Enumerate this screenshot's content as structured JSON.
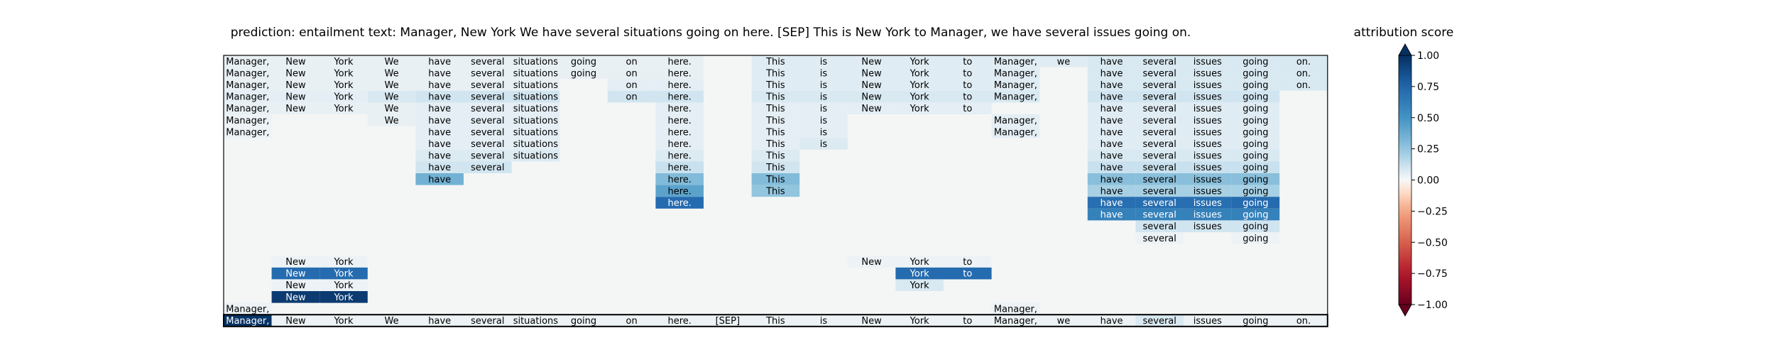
{
  "chart_data": {
    "type": "heatmap",
    "title": "prediction:  entailment     text:  Manager, New York We have several situations going on here. [SEP] This is New York to Manager, we have several issues going on.",
    "colorbar": {
      "label": "attribution score",
      "range": [
        -1.0,
        1.0
      ],
      "ticks": [
        "1.00",
        "0.75",
        "0.50",
        "0.25",
        "0.00",
        "−0.25",
        "−0.50",
        "−0.75",
        "−1.00"
      ],
      "tick_values": [
        1.0,
        0.75,
        0.5,
        0.25,
        0.0,
        -0.25,
        -0.5,
        -0.75,
        -1.0
      ],
      "colormap": "RdBu",
      "extend": "both"
    },
    "columns": [
      "Manager,",
      "New",
      "York",
      "We",
      "have",
      "several",
      "situations",
      "going",
      "on",
      "here.",
      "[SEP]",
      "This",
      "is",
      "New",
      "York",
      "to",
      "Manager,",
      "we",
      "have",
      "several",
      "issues",
      "going",
      "on."
    ],
    "rows": [
      {
        "cells": [
          [
            0,
            0.04
          ],
          [
            1,
            0.04
          ],
          [
            2,
            0.04
          ],
          [
            3,
            0.04
          ],
          [
            4,
            0.04
          ],
          [
            5,
            0.04
          ],
          [
            6,
            0.04
          ],
          [
            7,
            0.04
          ],
          [
            8,
            0.04
          ],
          [
            9,
            0.04
          ],
          [
            11,
            0.06
          ],
          [
            12,
            0.06
          ],
          [
            13,
            0.06
          ],
          [
            14,
            0.06
          ],
          [
            15,
            0.06
          ],
          [
            16,
            0.06
          ],
          [
            17,
            0.06
          ],
          [
            18,
            0.08
          ],
          [
            19,
            0.08
          ],
          [
            20,
            0.08
          ],
          [
            21,
            0.08
          ],
          [
            22,
            0.08
          ]
        ]
      },
      {
        "cells": [
          [
            0,
            0.04
          ],
          [
            1,
            0.04
          ],
          [
            2,
            0.04
          ],
          [
            3,
            0.04
          ],
          [
            4,
            0.04
          ],
          [
            5,
            0.04
          ],
          [
            6,
            0.04
          ],
          [
            7,
            0.04
          ],
          [
            8,
            0.04
          ],
          [
            9,
            0.04
          ],
          [
            11,
            0.06
          ],
          [
            12,
            0.06
          ],
          [
            13,
            0.06
          ],
          [
            14,
            0.06
          ],
          [
            15,
            0.06
          ],
          [
            16,
            0.06
          ],
          [
            18,
            0.08
          ],
          [
            19,
            0.08
          ],
          [
            20,
            0.08
          ],
          [
            21,
            0.08
          ],
          [
            22,
            0.08
          ]
        ]
      },
      {
        "cells": [
          [
            0,
            0.04
          ],
          [
            1,
            0.04
          ],
          [
            2,
            0.04
          ],
          [
            3,
            0.04
          ],
          [
            4,
            0.04
          ],
          [
            5,
            0.04
          ],
          [
            6,
            0.04
          ],
          [
            8,
            0.05
          ],
          [
            9,
            0.05
          ],
          [
            11,
            0.06
          ],
          [
            12,
            0.06
          ],
          [
            13,
            0.06
          ],
          [
            14,
            0.06
          ],
          [
            15,
            0.06
          ],
          [
            16,
            0.06
          ],
          [
            18,
            0.08
          ],
          [
            19,
            0.08
          ],
          [
            20,
            0.08
          ],
          [
            21,
            0.08
          ],
          [
            22,
            0.08
          ]
        ]
      },
      {
        "cells": [
          [
            0,
            0.05
          ],
          [
            1,
            0.05
          ],
          [
            2,
            0.05
          ],
          [
            3,
            0.08
          ],
          [
            4,
            0.1
          ],
          [
            5,
            0.1
          ],
          [
            6,
            0.1
          ],
          [
            8,
            0.1
          ],
          [
            9,
            0.1
          ],
          [
            11,
            0.08
          ],
          [
            12,
            0.08
          ],
          [
            13,
            0.08
          ],
          [
            14,
            0.08
          ],
          [
            15,
            0.08
          ],
          [
            16,
            0.08
          ],
          [
            18,
            0.1
          ],
          [
            19,
            0.1
          ],
          [
            20,
            0.1
          ],
          [
            21,
            0.1
          ]
        ]
      },
      {
        "cells": [
          [
            0,
            0.04
          ],
          [
            1,
            0.04
          ],
          [
            2,
            0.04
          ],
          [
            3,
            0.04
          ],
          [
            4,
            0.05
          ],
          [
            5,
            0.05
          ],
          [
            6,
            0.05
          ],
          [
            9,
            0.05
          ],
          [
            11,
            0.05
          ],
          [
            12,
            0.05
          ],
          [
            13,
            0.05
          ],
          [
            14,
            0.05
          ],
          [
            15,
            0.05
          ],
          [
            18,
            0.06
          ],
          [
            19,
            0.06
          ],
          [
            20,
            0.06
          ],
          [
            21,
            0.06
          ]
        ]
      },
      {
        "cells": [
          [
            0,
            0.03
          ],
          [
            3,
            0.04
          ],
          [
            4,
            0.05
          ],
          [
            5,
            0.05
          ],
          [
            6,
            0.05
          ],
          [
            9,
            0.05
          ],
          [
            11,
            0.05
          ],
          [
            12,
            0.05
          ],
          [
            16,
            0.05
          ],
          [
            18,
            0.06
          ],
          [
            19,
            0.06
          ],
          [
            20,
            0.06
          ],
          [
            21,
            0.06
          ]
        ]
      },
      {
        "cells": [
          [
            0,
            0.03
          ],
          [
            4,
            0.05
          ],
          [
            5,
            0.05
          ],
          [
            6,
            0.05
          ],
          [
            9,
            0.05
          ],
          [
            11,
            0.05
          ],
          [
            12,
            0.05
          ],
          [
            16,
            0.05
          ],
          [
            18,
            0.06
          ],
          [
            19,
            0.06
          ],
          [
            20,
            0.06
          ],
          [
            21,
            0.06
          ]
        ]
      },
      {
        "cells": [
          [
            4,
            0.05
          ],
          [
            5,
            0.05
          ],
          [
            6,
            0.05
          ],
          [
            9,
            0.05
          ],
          [
            11,
            0.05
          ],
          [
            12,
            0.07
          ],
          [
            18,
            0.06
          ],
          [
            19,
            0.06
          ],
          [
            20,
            0.06
          ],
          [
            21,
            0.06
          ]
        ]
      },
      {
        "cells": [
          [
            4,
            0.07
          ],
          [
            5,
            0.07
          ],
          [
            6,
            0.07
          ],
          [
            9,
            0.07
          ],
          [
            11,
            0.07
          ],
          [
            18,
            0.08
          ],
          [
            19,
            0.08
          ],
          [
            20,
            0.08
          ],
          [
            21,
            0.08
          ]
        ]
      },
      {
        "cells": [
          [
            4,
            0.1
          ],
          [
            5,
            0.1
          ],
          [
            9,
            0.12
          ],
          [
            11,
            0.1
          ],
          [
            18,
            0.12
          ],
          [
            19,
            0.12
          ],
          [
            20,
            0.12
          ],
          [
            21,
            0.12
          ]
        ]
      },
      {
        "cells": [
          [
            4,
            0.35
          ],
          [
            9,
            0.3
          ],
          [
            11,
            0.3
          ],
          [
            18,
            0.28
          ],
          [
            19,
            0.28
          ],
          [
            20,
            0.28
          ],
          [
            21,
            0.28
          ]
        ]
      },
      {
        "cells": [
          [
            9,
            0.42
          ],
          [
            11,
            0.25
          ],
          [
            18,
            0.2
          ],
          [
            19,
            0.2
          ],
          [
            20,
            0.2
          ],
          [
            21,
            0.2
          ]
        ]
      },
      {
        "cells": [
          [
            9,
            0.72
          ],
          [
            18,
            0.7
          ],
          [
            19,
            0.7
          ],
          [
            20,
            0.7
          ],
          [
            21,
            0.72
          ]
        ]
      },
      {
        "cells": [
          [
            18,
            0.6
          ],
          [
            19,
            0.6
          ],
          [
            20,
            0.6
          ],
          [
            21,
            0.6
          ]
        ]
      },
      {
        "cells": [
          [
            19,
            0.1
          ],
          [
            20,
            0.1
          ],
          [
            21,
            0.1
          ]
        ]
      },
      {
        "cells": [
          [
            19,
            0.03
          ],
          [
            21,
            0.03
          ]
        ]
      },
      {
        "cells": []
      },
      {
        "cells": [
          [
            1,
            0.03
          ],
          [
            2,
            0.03
          ],
          [
            13,
            0.03
          ],
          [
            14,
            0.03
          ],
          [
            15,
            0.03
          ]
        ]
      },
      {
        "cells": [
          [
            1,
            0.72
          ],
          [
            2,
            0.72
          ],
          [
            14,
            0.72
          ],
          [
            15,
            0.72
          ]
        ]
      },
      {
        "cells": [
          [
            1,
            0.03
          ],
          [
            2,
            0.03
          ],
          [
            14,
            0.08
          ]
        ]
      },
      {
        "cells": [
          [
            1,
            0.95
          ],
          [
            2,
            0.95
          ]
        ]
      },
      {
        "cells": [
          [
            0,
            0.03
          ],
          [
            16,
            0.03
          ]
        ]
      },
      {
        "cells": [
          [
            0,
            0.98
          ],
          [
            1,
            0.03
          ],
          [
            2,
            0.03
          ],
          [
            3,
            0.03
          ],
          [
            4,
            0.03
          ],
          [
            5,
            0.03
          ],
          [
            6,
            0.03
          ],
          [
            7,
            0.03
          ],
          [
            8,
            0.03
          ],
          [
            9,
            0.03
          ],
          [
            10,
            0.03
          ],
          [
            11,
            0.03
          ],
          [
            12,
            0.03
          ],
          [
            13,
            0.03
          ],
          [
            14,
            0.03
          ],
          [
            15,
            0.03
          ],
          [
            16,
            0.03
          ],
          [
            17,
            0.03
          ],
          [
            18,
            0.03
          ],
          [
            19,
            0.08
          ],
          [
            20,
            0.03
          ],
          [
            21,
            0.03
          ],
          [
            22,
            0.03
          ]
        ]
      }
    ],
    "highlight_last_row": true
  }
}
